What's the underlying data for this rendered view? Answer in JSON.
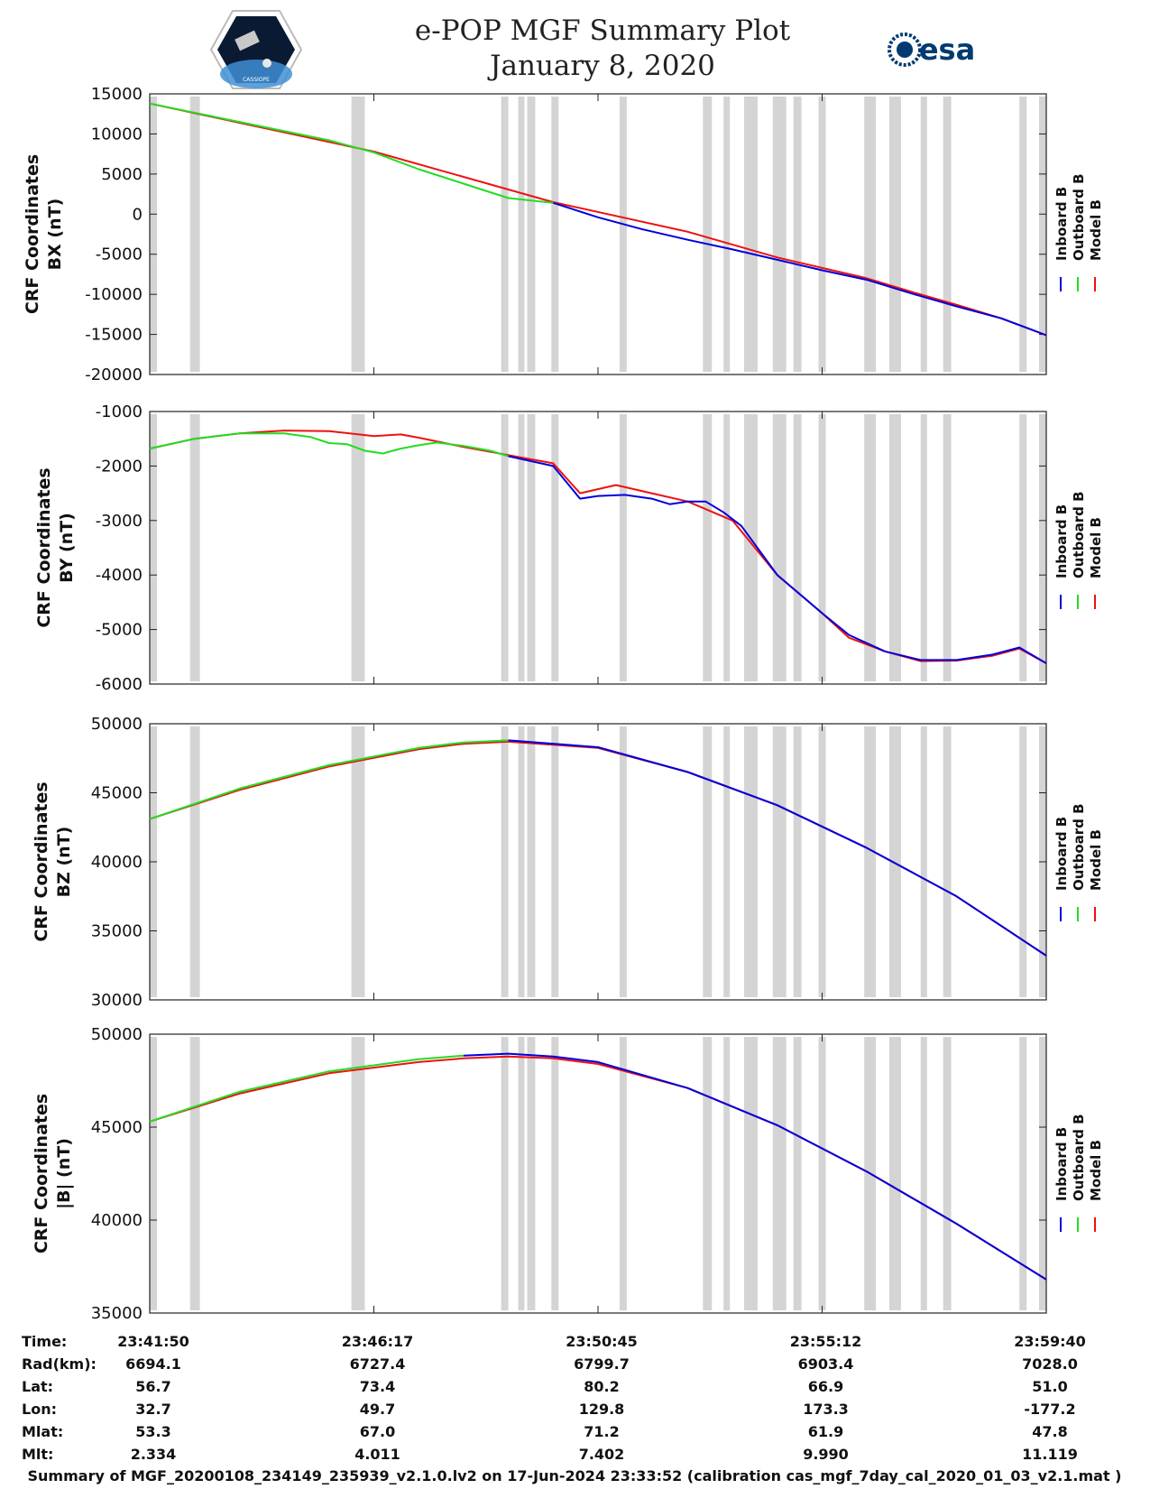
{
  "header": {
    "title_line1": "e-POP MGF Summary Plot",
    "title_line2": "January 8, 2020",
    "logo_left_text": "CASSIOPE",
    "logo_right_text": "esa"
  },
  "colors": {
    "inboard": "#0000dd",
    "outboard": "#22dd22",
    "model": "#ee1111",
    "gap": "#d4d4d4"
  },
  "chart_data": [
    {
      "type": "line",
      "id": "bx",
      "ylabel_line1": "CRF Coordinates",
      "ylabel_line2": "BX (nT)",
      "ylim": [
        -20000,
        15000
      ],
      "yticks": [
        15000,
        10000,
        5000,
        0,
        -5000,
        -10000,
        -15000,
        -20000
      ],
      "legend": [
        "Inboard B",
        "Outboard B",
        "Model B"
      ],
      "series": [
        {
          "name": "Model B",
          "key": "model",
          "t": [
            0,
            0.25,
            0.45,
            0.6,
            0.7,
            0.8,
            0.85,
            0.9,
            0.95,
            1.0
          ],
          "v": [
            13800,
            7800,
            1500,
            -2200,
            -5400,
            -8000,
            -9700,
            -11300,
            -13000,
            -15100
          ]
        },
        {
          "name": "Outboard B",
          "key": "outboard",
          "t": [
            0,
            0.1,
            0.2,
            0.25,
            0.3,
            0.35,
            0.4,
            0.45
          ],
          "v": [
            13800,
            11500,
            9200,
            7700,
            5600,
            3800,
            2000,
            1400
          ]
        },
        {
          "name": "Inboard B",
          "key": "inboard",
          "t": [
            0.45,
            0.5,
            0.55,
            0.6,
            0.65,
            0.7,
            0.75,
            0.8,
            0.85,
            0.9,
            0.95,
            1.0
          ],
          "v": [
            1400,
            -400,
            -1900,
            -3200,
            -4400,
            -5700,
            -7000,
            -8200,
            -9900,
            -11500,
            -13000,
            -15100
          ]
        }
      ]
    },
    {
      "type": "line",
      "id": "by",
      "ylabel_line1": "CRF Coordinates",
      "ylabel_line2": "BY (nT)",
      "ylim": [
        -6000,
        -1000
      ],
      "yticks": [
        -1000,
        -2000,
        -3000,
        -4000,
        -5000,
        -6000
      ],
      "legend": [
        "Inboard B",
        "Outboard B",
        "Model B"
      ],
      "series": [
        {
          "name": "Model B",
          "key": "model",
          "t": [
            0,
            0.05,
            0.1,
            0.15,
            0.2,
            0.25,
            0.28,
            0.3,
            0.35,
            0.4,
            0.45,
            0.48,
            0.52,
            0.56,
            0.6,
            0.65,
            0.7,
            0.75,
            0.78,
            0.82,
            0.86,
            0.9,
            0.94,
            0.97,
            1.0
          ],
          "v": [
            -1680,
            -1500,
            -1400,
            -1350,
            -1360,
            -1450,
            -1420,
            -1480,
            -1650,
            -1800,
            -1950,
            -2500,
            -2350,
            -2500,
            -2650,
            -3000,
            -4000,
            -4700,
            -5150,
            -5400,
            -5580,
            -5570,
            -5480,
            -5350,
            -5620
          ]
        },
        {
          "name": "Outboard B",
          "key": "outboard",
          "t": [
            0,
            0.05,
            0.1,
            0.15,
            0.18,
            0.2,
            0.22,
            0.24,
            0.26,
            0.28,
            0.3,
            0.32,
            0.35,
            0.38,
            0.4
          ],
          "v": [
            -1680,
            -1500,
            -1400,
            -1400,
            -1470,
            -1580,
            -1600,
            -1720,
            -1770,
            -1680,
            -1620,
            -1570,
            -1630,
            -1720,
            -1820
          ]
        },
        {
          "name": "Inboard B",
          "key": "inboard",
          "t": [
            0.4,
            0.45,
            0.48,
            0.5,
            0.53,
            0.56,
            0.58,
            0.6,
            0.62,
            0.64,
            0.66,
            0.7,
            0.75,
            0.78,
            0.82,
            0.86,
            0.9,
            0.94,
            0.97,
            1.0
          ],
          "v": [
            -1820,
            -2000,
            -2600,
            -2550,
            -2530,
            -2600,
            -2700,
            -2650,
            -2650,
            -2850,
            -3100,
            -4000,
            -4700,
            -5100,
            -5400,
            -5560,
            -5560,
            -5460,
            -5330,
            -5620
          ]
        }
      ]
    },
    {
      "type": "line",
      "id": "bz",
      "ylabel_line1": "CRF Coordinates",
      "ylabel_line2": "BZ (nT)",
      "ylim": [
        30000,
        50000
      ],
      "yticks": [
        50000,
        45000,
        40000,
        35000,
        30000
      ],
      "legend": [
        "Inboard B",
        "Outboard B",
        "Model B"
      ],
      "series": [
        {
          "name": "Model B",
          "key": "model",
          "t": [
            0,
            0.1,
            0.2,
            0.3,
            0.35,
            0.4,
            0.5,
            0.6,
            0.7,
            0.8,
            0.9,
            1.0
          ],
          "v": [
            43100,
            45200,
            46900,
            48150,
            48550,
            48700,
            48250,
            46500,
            44100,
            41000,
            37500,
            33200
          ]
        },
        {
          "name": "Outboard B",
          "key": "outboard",
          "t": [
            0,
            0.1,
            0.2,
            0.3,
            0.35,
            0.4
          ],
          "v": [
            43100,
            45300,
            47000,
            48250,
            48650,
            48800
          ]
        },
        {
          "name": "Inboard B",
          "key": "inboard",
          "t": [
            0.4,
            0.5,
            0.6,
            0.7,
            0.8,
            0.9,
            1.0
          ],
          "v": [
            48800,
            48300,
            46500,
            44100,
            41000,
            37500,
            33200
          ]
        }
      ]
    },
    {
      "type": "line",
      "id": "bmag",
      "ylabel_line1": "CRF Coordinates",
      "ylabel_line2": "|B| (nT)",
      "ylim": [
        35000,
        50000
      ],
      "yticks": [
        50000,
        45000,
        40000,
        35000
      ],
      "legend": [
        "Inboard B",
        "Outboard B",
        "Model B"
      ],
      "series": [
        {
          "name": "Model B",
          "key": "model",
          "t": [
            0,
            0.1,
            0.2,
            0.3,
            0.35,
            0.4,
            0.45,
            0.5,
            0.6,
            0.7,
            0.8,
            0.9,
            1.0
          ],
          "v": [
            45300,
            46800,
            47900,
            48500,
            48700,
            48800,
            48700,
            48400,
            47100,
            45100,
            42600,
            39800,
            36800
          ]
        },
        {
          "name": "Outboard B",
          "key": "outboard",
          "t": [
            0,
            0.1,
            0.2,
            0.3,
            0.35
          ],
          "v": [
            45300,
            46900,
            48000,
            48650,
            48850
          ]
        },
        {
          "name": "Inboard B",
          "key": "inboard",
          "t": [
            0.35,
            0.4,
            0.45,
            0.5,
            0.6,
            0.7,
            0.8,
            0.9,
            1.0
          ],
          "v": [
            48850,
            48950,
            48800,
            48500,
            47100,
            45100,
            42600,
            39800,
            36800
          ]
        }
      ]
    }
  ],
  "time_axis": {
    "tick_labels": [
      "23:41:50",
      "23:46:17",
      "23:50:45",
      "23:55:12",
      "23:59:40"
    ],
    "tick_fractions": [
      0,
      0.25,
      0.5,
      0.75,
      1.0
    ],
    "gaps": [
      [
        0,
        0.008
      ],
      [
        0.045,
        0.056
      ],
      [
        0.225,
        0.24
      ],
      [
        0.392,
        0.4
      ],
      [
        0.411,
        0.418
      ],
      [
        0.421,
        0.43
      ],
      [
        0.448,
        0.456
      ],
      [
        0.524,
        0.532
      ],
      [
        0.617,
        0.627
      ],
      [
        0.64,
        0.647
      ],
      [
        0.663,
        0.678
      ],
      [
        0.695,
        0.71
      ],
      [
        0.718,
        0.727
      ],
      [
        0.746,
        0.754
      ],
      [
        0.797,
        0.81
      ],
      [
        0.825,
        0.838
      ],
      [
        0.86,
        0.867
      ],
      [
        0.885,
        0.894
      ],
      [
        0.97,
        0.978
      ],
      [
        0.992,
        1.0
      ]
    ]
  },
  "orbit_table": {
    "rows": [
      {
        "label": "Time:",
        "values": [
          "23:41:50",
          "23:46:17",
          "23:50:45",
          "23:55:12",
          "23:59:40"
        ]
      },
      {
        "label": "Rad(km):",
        "values": [
          "6694.1",
          "6727.4",
          "6799.7",
          "6903.4",
          "7028.0"
        ]
      },
      {
        "label": "Lat:",
        "values": [
          "56.7",
          "73.4",
          "80.2",
          "66.9",
          "51.0"
        ]
      },
      {
        "label": "Lon:",
        "values": [
          "32.7",
          "49.7",
          "129.8",
          "173.3",
          "-177.2"
        ]
      },
      {
        "label": "Mlat:",
        "values": [
          "53.3",
          "67.0",
          "71.2",
          "61.9",
          "47.8"
        ]
      },
      {
        "label": "Mlt:",
        "values": [
          "2.334",
          "4.011",
          "7.402",
          "9.990",
          "11.119"
        ]
      }
    ]
  },
  "footer": {
    "text": "Summary of MGF_20200108_234149_235939_v2.1.0.lv2 on 17-Jun-2024 23:33:52 (calibration cas_mgf_7day_cal_2020_01_03_v2.1.mat )"
  }
}
